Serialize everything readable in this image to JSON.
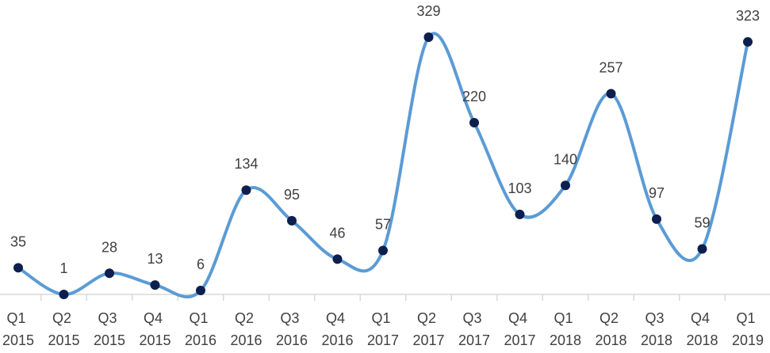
{
  "chart_data": {
    "type": "line",
    "categories": [
      "Q1 2015",
      "Q2 2015",
      "Q3 2015",
      "Q4 2015",
      "Q1 2016",
      "Q2 2016",
      "Q3 2016",
      "Q4 2016",
      "Q1 2017",
      "Q2 2017",
      "Q3 2017",
      "Q4 2017",
      "Q1 2018",
      "Q2 2018",
      "Q3 2018",
      "Q4 2018",
      "Q1 2019"
    ],
    "values": [
      35,
      1,
      28,
      13,
      6,
      134,
      95,
      46,
      57,
      329,
      220,
      103,
      140,
      257,
      97,
      59,
      323
    ],
    "color": "#5b9bd5",
    "marker_color": "#0d1f4f",
    "ylim": [
      0,
      330
    ]
  }
}
